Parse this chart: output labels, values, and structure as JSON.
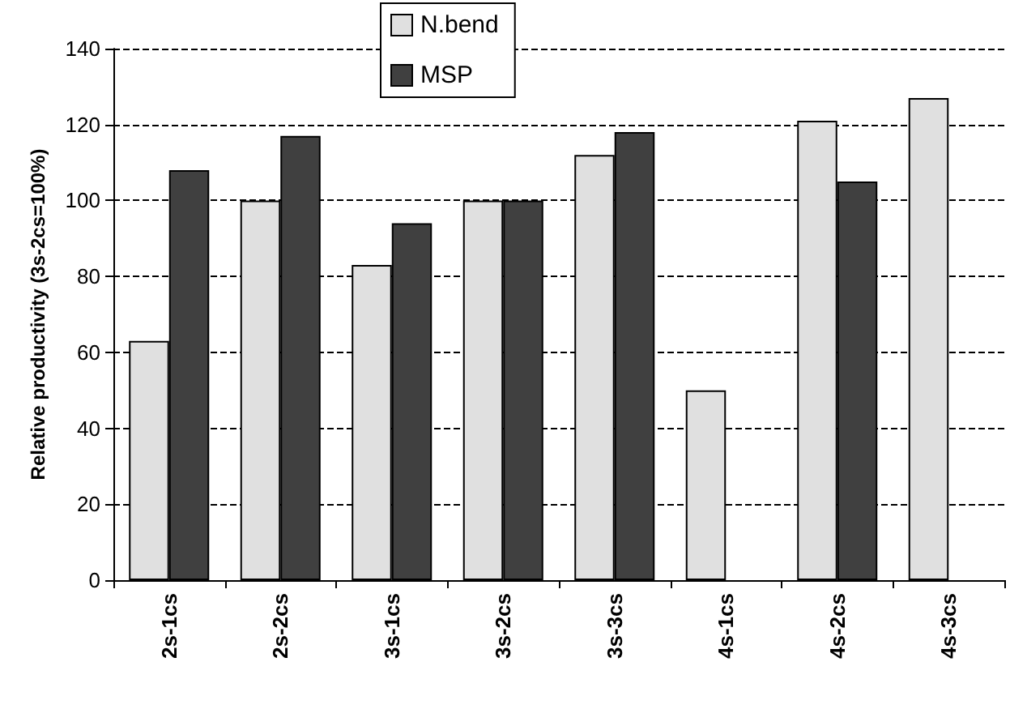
{
  "chart_data": {
    "type": "bar",
    "ylabel": "Relative productivity (3s-2cs=100%)",
    "categories": [
      "2s-1cs",
      "2s-2cs",
      "3s-1cs",
      "3s-2cs",
      "3s-3cs",
      "4s-1cs",
      "4s-2cs",
      "4s-3cs"
    ],
    "series": [
      {
        "name": "N.bend",
        "color": "#e0e0e0",
        "values": [
          63,
          100,
          83,
          100,
          112,
          50,
          121,
          127
        ]
      },
      {
        "name": "MSP",
        "color": "#404040",
        "values": [
          108,
          117,
          94,
          100,
          118,
          null,
          105,
          null
        ]
      }
    ],
    "ylim": [
      0,
      140
    ],
    "yticks": [
      0,
      20,
      40,
      60,
      80,
      100,
      120,
      140
    ],
    "grid": "y",
    "legend": "top"
  }
}
